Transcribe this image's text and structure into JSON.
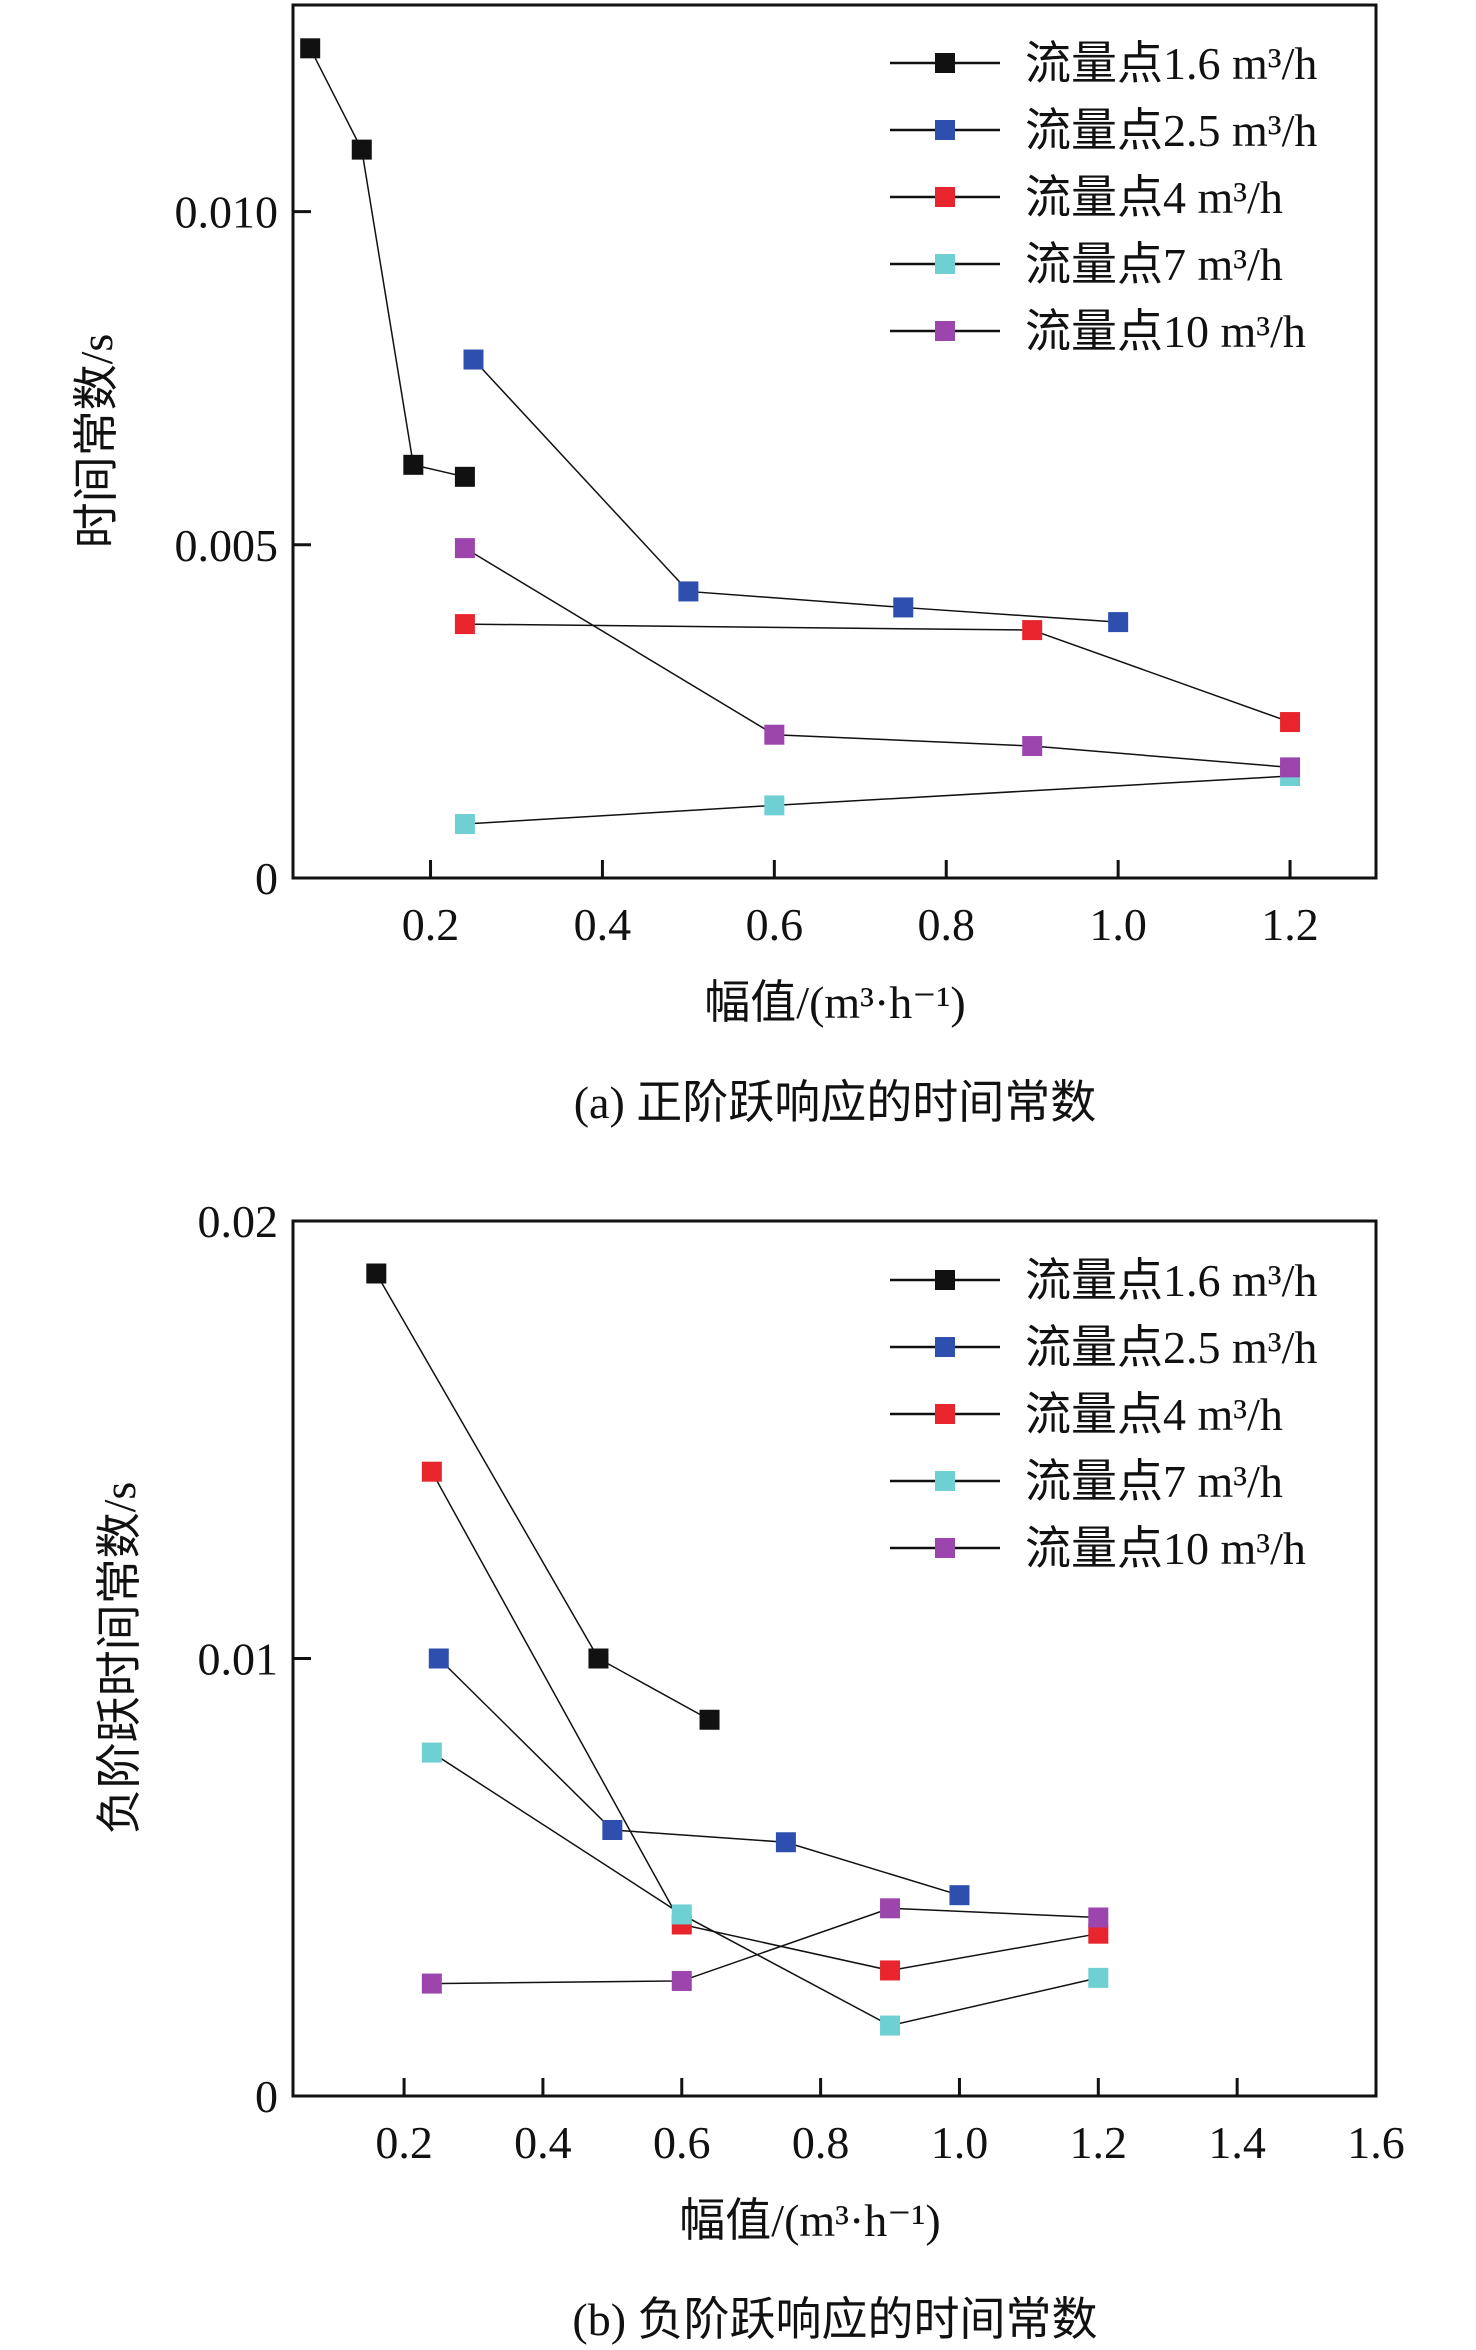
{
  "chart_data": [
    {
      "type": "line",
      "caption": "(a) 正阶跃响应的时间常数",
      "xlabel": "幅值/(m³·h⁻¹)",
      "ylabel": "时间常数/s",
      "xlim": [
        0.04,
        1.3
      ],
      "ylim": [
        0,
        0.0131
      ],
      "xticks": [
        0.2,
        0.4,
        0.6,
        0.8,
        1.0,
        1.2
      ],
      "xtick_labels": [
        "0.2",
        "0.4",
        "0.6",
        "0.8",
        "1.0",
        "1.2"
      ],
      "yticks": [
        0,
        0.005,
        0.01
      ],
      "ytick_labels": [
        "0",
        "0.005",
        "0.010"
      ],
      "grid": false,
      "legend_position": "top-right",
      "series": [
        {
          "name": "流量点1.6 m³/h",
          "color": "#111111",
          "x": [
            0.06,
            0.12,
            0.18,
            0.24
          ],
          "y": [
            0.01245,
            0.01093,
            0.0062,
            0.00602
          ]
        },
        {
          "name": "流量点2.5 m³/h",
          "color": "#2e4fae",
          "x": [
            0.25,
            0.5,
            0.75,
            1.0
          ],
          "y": [
            0.00778,
            0.0043,
            0.00406,
            0.00384
          ]
        },
        {
          "name": "流量点4 m³/h",
          "color": "#e8242c",
          "x": [
            0.24,
            0.9,
            1.2
          ],
          "y": [
            0.00381,
            0.00372,
            0.00234
          ]
        },
        {
          "name": "流量点7 m³/h",
          "color": "#6fd0d3",
          "x": [
            0.24,
            0.6,
            1.2
          ],
          "y": [
            0.00081,
            0.00109,
            0.00153
          ]
        },
        {
          "name": "流量点10 m³/h",
          "color": "#9b45ad",
          "x": [
            0.24,
            0.6,
            0.9,
            1.2
          ],
          "y": [
            0.00495,
            0.00215,
            0.00198,
            0.00166
          ]
        }
      ]
    },
    {
      "type": "line",
      "caption": "(b) 负阶跃响应的时间常数",
      "xlabel": "幅值/(m³·h⁻¹)",
      "ylabel": "负阶跃时间常数/s",
      "xlim": [
        0.04,
        1.6
      ],
      "ylim": [
        0,
        0.02
      ],
      "xticks": [
        0.2,
        0.4,
        0.6,
        0.8,
        1.0,
        1.2,
        1.4,
        1.6
      ],
      "xtick_labels": [
        "0.2",
        "0.4",
        "0.6",
        "0.8",
        "1.0",
        "1.2",
        "1.4",
        "1.6"
      ],
      "yticks": [
        0,
        0.01,
        0.02
      ],
      "ytick_labels": [
        "0",
        "0.01",
        "0.02"
      ],
      "grid": false,
      "legend_position": "top-right",
      "series": [
        {
          "name": "流量点1.6 m³/h",
          "color": "#111111",
          "x": [
            0.16,
            0.48,
            0.64
          ],
          "y": [
            0.0188,
            0.01,
            0.0086
          ]
        },
        {
          "name": "流量点2.5 m³/h",
          "color": "#2e4fae",
          "x": [
            0.25,
            0.5,
            0.75,
            1.0
          ],
          "y": [
            0.01,
            0.00608,
            0.0058,
            0.00459
          ]
        },
        {
          "name": "流量点4 m³/h",
          "color": "#e8242c",
          "x": [
            0.24,
            0.6,
            0.9,
            1.2
          ],
          "y": [
            0.01427,
            0.00392,
            0.00287,
            0.00371
          ]
        },
        {
          "name": "流量点7 m³/h",
          "color": "#6fd0d3",
          "x": [
            0.24,
            0.6,
            0.9,
            1.2
          ],
          "y": [
            0.00785,
            0.00415,
            0.00161,
            0.0027
          ]
        },
        {
          "name": "流量点10 m³/h",
          "color": "#9b45ad",
          "x": [
            0.24,
            0.6,
            0.9,
            1.2
          ],
          "y": [
            0.00257,
            0.00263,
            0.00429,
            0.00408
          ]
        }
      ]
    }
  ]
}
